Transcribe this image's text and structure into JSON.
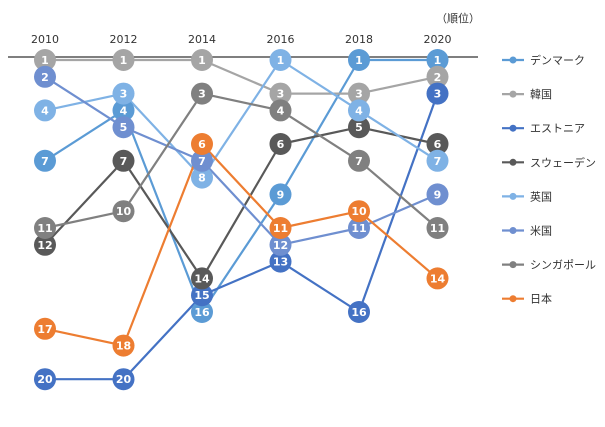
{
  "chart_data": {
    "type": "line",
    "chart_kind": "bump",
    "x": [
      2010,
      2012,
      2014,
      2016,
      2018,
      2020
    ],
    "unit_label": "（順位）",
    "y_axis_inverted": true,
    "ylim": [
      1,
      20
    ],
    "grid": false,
    "legend_position": "right",
    "series": [
      {
        "name": "デンマーク",
        "color": "#5b9bd5",
        "values": [
          7,
          4,
          16,
          9,
          1,
          1
        ]
      },
      {
        "name": "韓国",
        "color": "#a5a5a5",
        "values": [
          1,
          1,
          1,
          3,
          3,
          2
        ]
      },
      {
        "name": "エストニア",
        "color": "#4472c4",
        "values": [
          20,
          20,
          15,
          13,
          16,
          3
        ]
      },
      {
        "name": "スウェーデン",
        "color": "#595959",
        "values": [
          12,
          7,
          14,
          6,
          5,
          6
        ]
      },
      {
        "name": "英国",
        "color": "#7fb2e5",
        "values": [
          4,
          3,
          8,
          1,
          4,
          7
        ]
      },
      {
        "name": "米国",
        "color": "#6f8fd0",
        "values": [
          2,
          5,
          7,
          12,
          11,
          9
        ]
      },
      {
        "name": "シンガポール",
        "color": "#808080",
        "values": [
          11,
          10,
          3,
          4,
          7,
          11
        ]
      },
      {
        "name": "日本",
        "color": "#ed7d31",
        "values": [
          17,
          18,
          6,
          11,
          10,
          14
        ]
      }
    ]
  }
}
